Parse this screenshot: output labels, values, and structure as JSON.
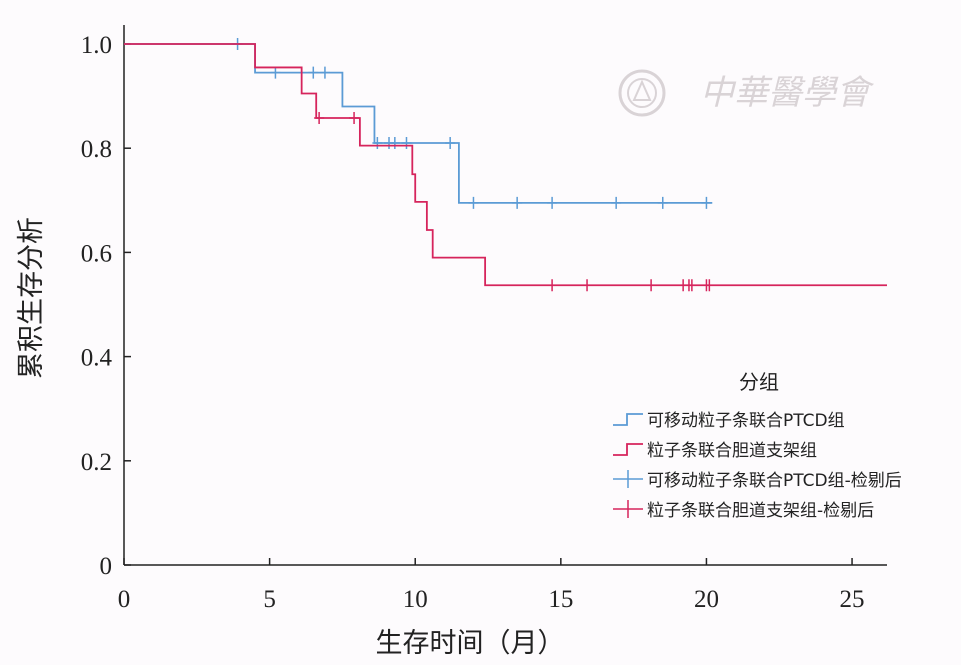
{
  "chart_data": {
    "type": "line",
    "subtype": "kaplan-meier",
    "title": "",
    "xlabel": "生存时间（月）",
    "ylabel": "累积生存分析",
    "xlim": [
      0,
      26.2
    ],
    "ylim": [
      0,
      1.0
    ],
    "xticks": [
      0,
      5,
      10,
      15,
      20,
      25
    ],
    "yticks": [
      0,
      0.2,
      0.4,
      0.6,
      0.8,
      1.0
    ],
    "ytick_labels": [
      "0",
      "0.2",
      "0.4",
      "0.6",
      "0.8",
      "1.0"
    ],
    "legend": {
      "title": "分组",
      "position": "right",
      "entries": [
        {
          "label": "可移动粒子条联合PTCD组",
          "kind": "step",
          "color": "#5b9bd5"
        },
        {
          "label": "粒子条联合胆道支架组",
          "kind": "step",
          "color": "#d6245c"
        },
        {
          "label": "可移动粒子条联合PTCD组-检剔后",
          "kind": "censor",
          "color": "#5b9bd5"
        },
        {
          "label": "粒子条联合胆道支架组-检剔后",
          "kind": "censor",
          "color": "#d6245c"
        }
      ]
    },
    "series": [
      {
        "name": "可移动粒子条联合PTCD组",
        "color": "#5b9bd5",
        "steps": [
          [
            0,
            1.0
          ],
          [
            4.5,
            0.945
          ],
          [
            7.5,
            0.88
          ],
          [
            8.6,
            0.81
          ],
          [
            11.3,
            0.81
          ],
          [
            11.5,
            0.695
          ],
          [
            20.2,
            0.695
          ]
        ],
        "censored": [
          [
            3.9,
            1.0
          ],
          [
            5.2,
            0.945
          ],
          [
            6.5,
            0.945
          ],
          [
            6.9,
            0.945
          ],
          [
            8.7,
            0.81
          ],
          [
            9.1,
            0.81
          ],
          [
            9.3,
            0.81
          ],
          [
            9.7,
            0.81
          ],
          [
            11.2,
            0.81
          ],
          [
            12.0,
            0.695
          ],
          [
            13.5,
            0.695
          ],
          [
            14.7,
            0.695
          ],
          [
            16.9,
            0.695
          ],
          [
            18.5,
            0.695
          ],
          [
            20.0,
            0.695
          ]
        ]
      },
      {
        "name": "粒子条联合胆道支架组",
        "color": "#d6245c",
        "steps": [
          [
            0,
            1.0
          ],
          [
            4.5,
            0.955
          ],
          [
            6.1,
            0.905
          ],
          [
            6.6,
            0.858
          ],
          [
            8.1,
            0.805
          ],
          [
            9.9,
            0.75
          ],
          [
            10.0,
            0.697
          ],
          [
            10.4,
            0.643
          ],
          [
            10.6,
            0.59
          ],
          [
            12.4,
            0.537
          ],
          [
            26.2,
            0.537
          ]
        ],
        "censored": [
          [
            6.7,
            0.858
          ],
          [
            7.9,
            0.858
          ],
          [
            14.7,
            0.537
          ],
          [
            15.9,
            0.537
          ],
          [
            18.1,
            0.537
          ],
          [
            19.2,
            0.537
          ],
          [
            19.4,
            0.537
          ],
          [
            19.5,
            0.537
          ],
          [
            20.0,
            0.537
          ],
          [
            20.1,
            0.537
          ]
        ]
      }
    ],
    "grid": false
  },
  "watermark": {
    "text": "中華醫學會",
    "kind": "logo"
  }
}
